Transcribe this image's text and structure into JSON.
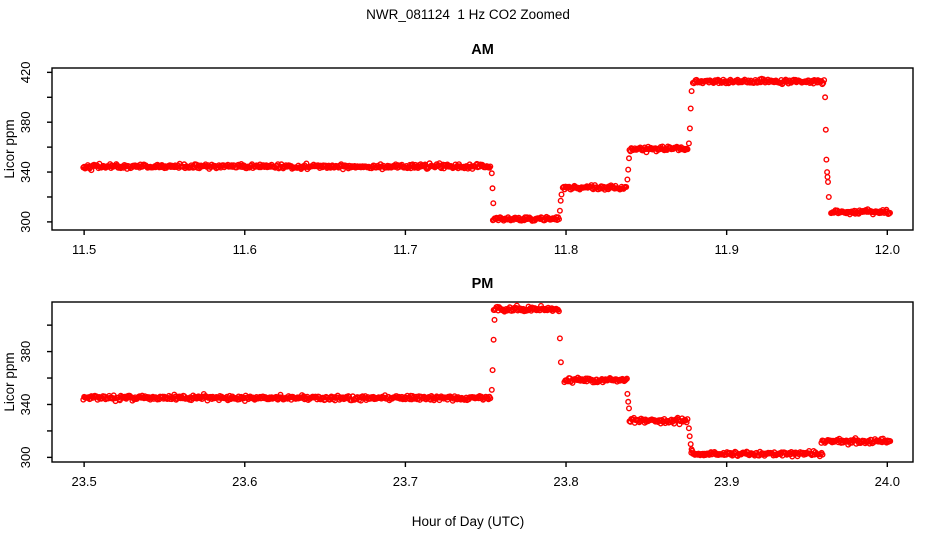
{
  "title": "NWR_081124  1 Hz CO2 Zoomed",
  "xlabel": "Hour of Day (UTC)",
  "point_color": "#ff0000",
  "axis_color": "#000000",
  "background_color": "#ffffff",
  "chart_data": [
    {
      "type": "scatter",
      "title": "AM",
      "ylabel": "Licor ppm",
      "marker": "open-circle",
      "xlim": [
        11.48,
        12.016
      ],
      "ylim": [
        293.5,
        423.5
      ],
      "xticks": [
        11.5,
        11.6,
        11.7,
        11.8,
        11.9,
        12.0
      ],
      "yticks_labeled": [
        300,
        340,
        380,
        420
      ],
      "yticks_minor": [
        320,
        360,
        400
      ],
      "sample_interval_s": 2,
      "noise_sd_ppm": 0.9,
      "segments": [
        {
          "start": 11.4995,
          "end": 11.753,
          "ppm": 344.5
        },
        {
          "start": 11.7545,
          "end": 11.796,
          "ppm": 302.3
        },
        {
          "start": 11.798,
          "end": 11.838,
          "ppm": 327.5
        },
        {
          "start": 11.8395,
          "end": 11.876,
          "ppm": 358.5
        },
        {
          "start": 11.879,
          "end": 11.961,
          "ppm": 412.5
        },
        {
          "start": 11.965,
          "end": 12.002,
          "ppm": 308.0
        }
      ],
      "transition_points": [
        [
          11.7538,
          339
        ],
        [
          11.7542,
          327
        ],
        [
          11.7547,
          315
        ],
        [
          11.7962,
          309
        ],
        [
          11.7967,
          317
        ],
        [
          11.7972,
          322
        ],
        [
          11.8382,
          334
        ],
        [
          11.8387,
          342
        ],
        [
          11.8392,
          351
        ],
        [
          11.8765,
          363
        ],
        [
          11.8771,
          375
        ],
        [
          11.8776,
          391
        ],
        [
          11.8782,
          405
        ],
        [
          11.9613,
          400
        ],
        [
          11.9617,
          374
        ],
        [
          11.9621,
          350
        ],
        [
          11.9625,
          340
        ],
        [
          11.9628,
          336
        ],
        [
          11.9631,
          332
        ],
        [
          11.9636,
          320
        ]
      ]
    },
    {
      "type": "scatter",
      "title": "PM",
      "ylabel": "Licor ppm",
      "marker": "open-circle",
      "xlim": [
        23.48,
        24.016
      ],
      "ylim": [
        296.5,
        417.5
      ],
      "xticks": [
        23.5,
        23.6,
        23.7,
        23.8,
        23.9,
        24.0
      ],
      "yticks_labeled": [
        300,
        340,
        380
      ],
      "yticks_minor": [
        320,
        360,
        400
      ],
      "sample_interval_s": 2,
      "noise_sd_ppm": 0.9,
      "segments": [
        {
          "start": 23.4995,
          "end": 23.753,
          "ppm": 345.0
        },
        {
          "start": 23.755,
          "end": 23.796,
          "ppm": 412.0
        },
        {
          "start": 23.799,
          "end": 23.838,
          "ppm": 358.5
        },
        {
          "start": 23.8395,
          "end": 23.876,
          "ppm": 328.0
        },
        {
          "start": 23.878,
          "end": 23.96,
          "ppm": 302.8
        },
        {
          "start": 23.959,
          "end": 24.002,
          "ppm": 312.0
        }
      ],
      "transition_points": [
        [
          23.7538,
          351
        ],
        [
          23.7543,
          366
        ],
        [
          23.7549,
          389
        ],
        [
          23.7555,
          404
        ],
        [
          23.7962,
          390
        ],
        [
          23.7968,
          372
        ],
        [
          23.8382,
          348
        ],
        [
          23.8387,
          342
        ],
        [
          23.8392,
          337
        ],
        [
          23.8765,
          322
        ],
        [
          23.877,
          316
        ],
        [
          23.8776,
          310
        ],
        [
          23.8782,
          306
        ]
      ]
    }
  ]
}
